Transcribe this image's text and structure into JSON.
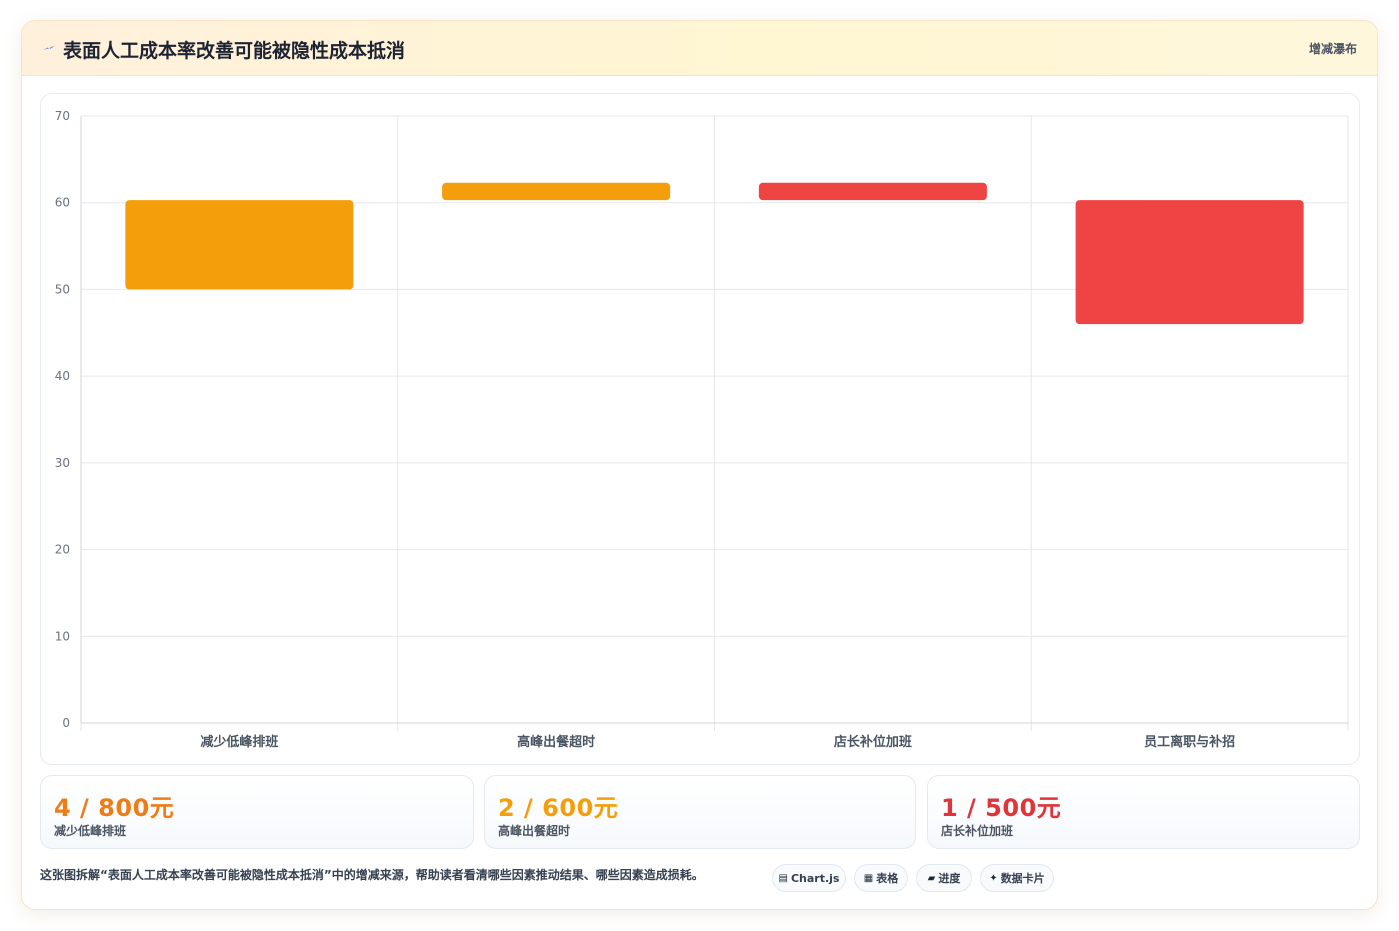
{
  "header": {
    "title": "表面人工成本率改善可能被隐性成本抵消",
    "badge": "增减瀑布",
    "icon": "lightning-icon"
  },
  "chart_data": {
    "type": "waterfall",
    "categories": [
      "减少低峰排班",
      "高峰出餐超时",
      "店长补位加班",
      "员工离职与补招"
    ],
    "bars": [
      {
        "category": "减少低峰排班",
        "start": 50,
        "end": 60.3,
        "color": "#f59e0b"
      },
      {
        "category": "高峰出餐超时",
        "start": 60.3,
        "end": 62.3,
        "color": "#f59e0b"
      },
      {
        "category": "店长补位加班",
        "start": 62.3,
        "end": 60.3,
        "color": "#ef4444"
      },
      {
        "category": "员工离职与补招",
        "start": 60.3,
        "end": 46,
        "color": "#ef4444"
      }
    ],
    "ylim": [
      0,
      70
    ],
    "yticks": [
      0,
      10,
      20,
      30,
      40,
      50,
      60,
      70
    ],
    "grid": true,
    "legend": "none"
  },
  "stats": [
    {
      "value": "4 / 800元",
      "label": "减少低峰排班",
      "color": "#f07c16"
    },
    {
      "value": "2 / 600元",
      "label": "高峰出餐超时",
      "color": "#f59e0b"
    },
    {
      "value": "1 / 500元",
      "label": "店长补位加班",
      "color": "#e0343a"
    }
  ],
  "footer": {
    "note": "这张图拆解“表面人工成本率改善可能被隐性成本抵消”中的增减来源，帮助读者看清哪些因素推动结果、哪些因素造成损耗。"
  },
  "chips": [
    {
      "glyph": "▤",
      "icon": "chart-icon",
      "label": "Chart.js"
    },
    {
      "glyph": "▦",
      "icon": "table-icon",
      "label": "表格"
    },
    {
      "glyph": "▰",
      "icon": "progress-icon",
      "label": "进度"
    },
    {
      "glyph": "✦",
      "icon": "sparkle-icon",
      "label": "数据卡片"
    }
  ]
}
